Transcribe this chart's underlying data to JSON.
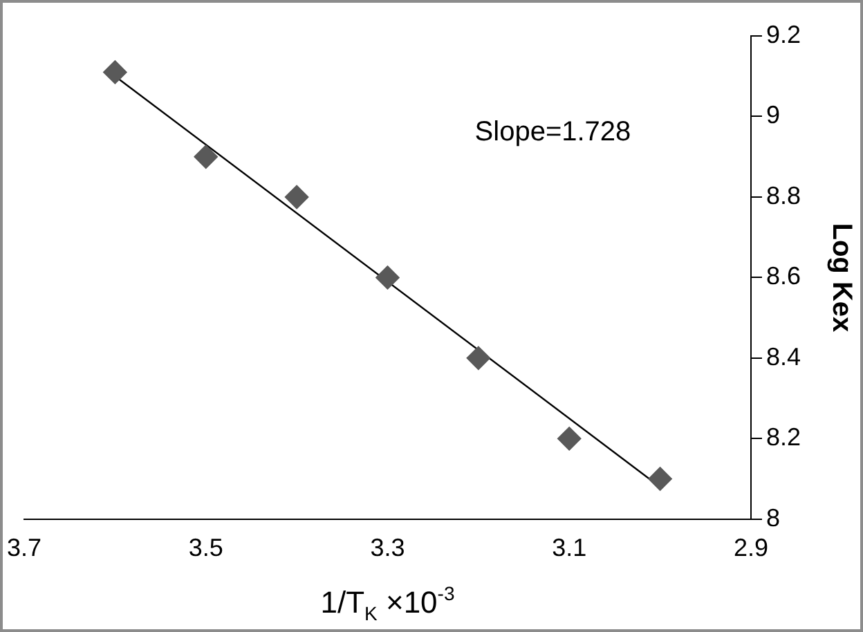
{
  "chart_data": {
    "type": "scatter",
    "xlabel": "1/T$_{K}$ ×10$^{-3}$",
    "ylabel": "Log Kex",
    "x": [
      3.6,
      3.5,
      3.4,
      3.3,
      3.2,
      3.1,
      3.0
    ],
    "series": [
      {
        "type": "scatter",
        "color": "#595959",
        "values": [
          9.11,
          8.9,
          8.8,
          8.6,
          8.4,
          8.2,
          8.1
        ],
        "marker": "diamond"
      },
      {
        "type": "line",
        "color": "#000000",
        "x": [
          3.6,
          3.0
        ],
        "values": [
          9.1,
          8.08
        ],
        "marker": "none"
      }
    ],
    "xlim": [
      3.7,
      2.9
    ],
    "xticks": [
      3.7,
      3.5,
      3.3,
      3.1,
      2.9
    ],
    "ylim": [
      8,
      9.2
    ],
    "yticks": [
      8,
      8.2,
      8.4,
      8.6,
      8.8,
      9,
      9.2
    ],
    "annotations": [
      "Slope=1.728"
    ],
    "grid": false,
    "legend": false
  }
}
